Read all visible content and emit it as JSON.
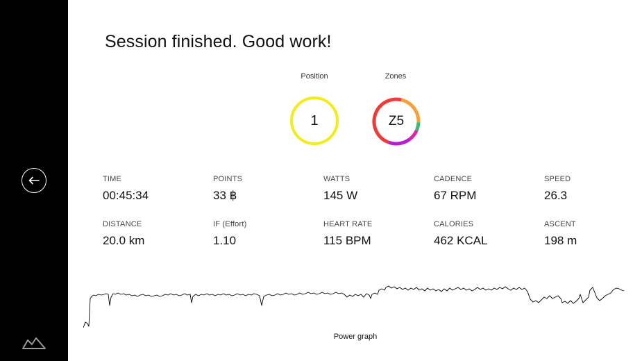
{
  "header": {
    "title": "Session finished. Good work!"
  },
  "summary": {
    "position": {
      "label": "Position",
      "value": "1",
      "ring_color": "#f2ec1b"
    },
    "zones": {
      "label": "Zones",
      "value": "Z5",
      "segments": [
        {
          "color": "#ef3b3b",
          "fraction": 0.48
        },
        {
          "color": "#f5a03b",
          "fraction": 0.22
        },
        {
          "color": "#3cb878",
          "fraction": 0.06
        },
        {
          "color": "#d42aa8",
          "fraction": 0.08
        },
        {
          "color": "#b51fd0",
          "fraction": 0.16
        }
      ]
    }
  },
  "stats": [
    {
      "label": "TIME",
      "value": "00:45:34"
    },
    {
      "label": "POINTS",
      "value": "33 ฿"
    },
    {
      "label": "WATTS",
      "value": "145 W"
    },
    {
      "label": "CADENCE",
      "value": "67 RPM"
    },
    {
      "label": "SPEED",
      "value": "26.3"
    },
    {
      "label": "DISTANCE",
      "value": "20.0 km"
    },
    {
      "label": "IF (Effort)",
      "value": "1.10"
    },
    {
      "label": "HEART RATE",
      "value": "115 BPM"
    },
    {
      "label": "CALORIES",
      "value": "462 KCAL"
    },
    {
      "label": "ASCENT",
      "value": "198 m"
    }
  ],
  "power_graph": {
    "caption": "Power graph",
    "line_color": "#000000"
  },
  "sidebar": {
    "back_icon": "arrow-left-icon",
    "logo_icon": "brand-logo"
  }
}
